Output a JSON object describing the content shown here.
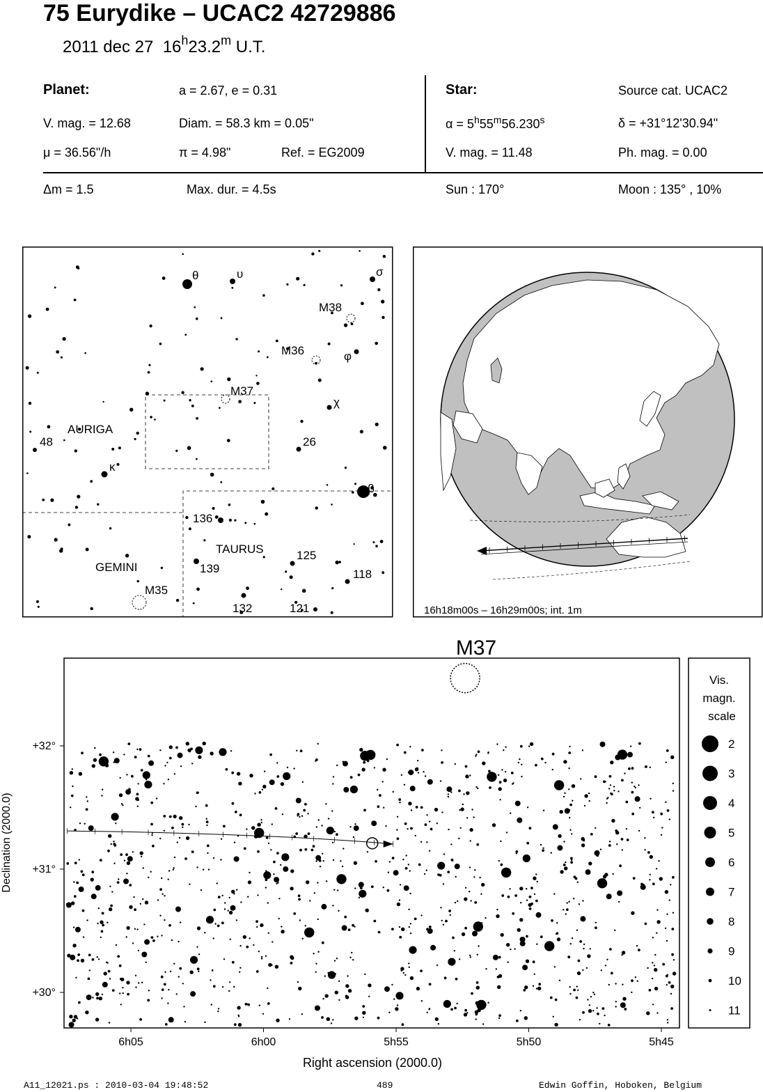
{
  "header": {
    "title": "75 Eurydike  –  UCAC2 42729886",
    "date": "2011 dec 27",
    "time_h": "16",
    "time_h_sup": "h",
    "time_m": "23.2",
    "time_m_sup": "m",
    "time_ut": "U.T."
  },
  "planet": {
    "heading": "Planet:",
    "orbit": "a = 2.67, e = 0.31",
    "vmag": "V. mag. = 12.68",
    "diam": "Diam. = 58.3 km = 0.05\"",
    "mu": "μ =  36.56\"/h",
    "pi": "π =  4.98\"",
    "ref": "Ref. = EG2009"
  },
  "star": {
    "heading": "Star:",
    "source": "Source cat.  UCAC2",
    "alpha_prefix": "α =  5",
    "alpha_h": "h",
    "alpha_mid": "55",
    "alpha_m": "m",
    "alpha_sec": "56.230",
    "alpha_s": "s",
    "delta": "δ = +31°12'30.94\"",
    "vmag": "V. mag. = 11.48",
    "phmag": "Ph. mag. =  0.00"
  },
  "event": {
    "dm": "Δm = 1.5",
    "maxdur": "Max. dur. = 4.5s",
    "sun": "Sun : 170°",
    "moon": "Moon : 135° , 10%"
  },
  "finder": {
    "labels": {
      "theta": "θ",
      "upsilon": "υ",
      "sigma": "σ",
      "phi": "φ",
      "chi": "χ",
      "kappa": "κ",
      "beta": "β",
      "m38": "M38",
      "m36": "M36",
      "m37": "M37",
      "m35": "M35",
      "auriga": "AURIGA",
      "taurus": "TAURUS",
      "gemini": "GEMINI",
      "n48": "48",
      "n26": "26",
      "n136": "136",
      "n125": "125",
      "n139": "139",
      "n118": "118",
      "n132": "132",
      "n121": "121"
    }
  },
  "globe": {
    "caption": "16h18m00s – 16h29m00s; int.  1m",
    "colors": {
      "ocean": "#c0c0c0",
      "land": "#ffffff"
    }
  },
  "chart_data": {
    "type": "scatter",
    "title": "M37",
    "xlabel": "Right ascension (2000.0)",
    "ylabel": "Declination (2000.0)",
    "x_ticks": [
      "6h05",
      "6h00",
      "5h55",
      "5h50",
      "5h45"
    ],
    "y_ticks": [
      "+32°",
      "+31°",
      "+30°"
    ],
    "path_points": [
      {
        "ra": "6h07.4",
        "dec": 31.31
      },
      {
        "ra": "6h00",
        "dec": 31.29
      },
      {
        "ra": "5h55.9",
        "dec": 31.21
      }
    ],
    "star_marker": {
      "ra": "5h55.9",
      "dec": 31.21
    },
    "cluster": {
      "name": "M37",
      "ra": "5h52.4",
      "dec": 32.55
    }
  },
  "legend": {
    "title_lines": [
      "Vis.",
      "magn.",
      "scale"
    ],
    "mags": [
      "2",
      "3",
      "4",
      "5",
      "6",
      "7",
      "8",
      "9",
      "10",
      "11"
    ]
  },
  "footer": {
    "left": "A11_12021.ps : 2010-03-04 19:48:52",
    "center": "489",
    "right": "Edwin Goffin, Hoboken, Belgium"
  }
}
